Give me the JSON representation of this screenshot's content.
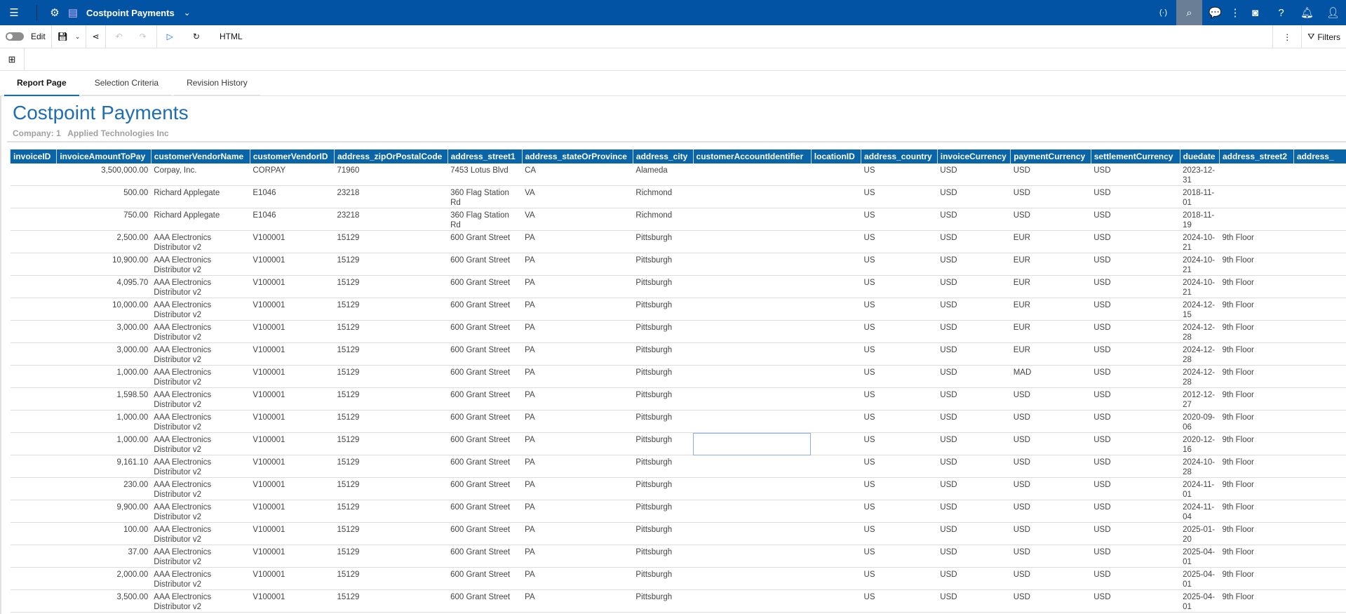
{
  "topbar": {
    "title": "Costpoint Payments",
    "icons": [
      "menu-icon",
      "ibm-logo-icon",
      "report-icon",
      "chevron-down-icon",
      "broadcast-icon",
      "search-icon",
      "chat-icon",
      "overflow-icon",
      "preview-icon",
      "help-icon",
      "notification-icon",
      "user-icon"
    ]
  },
  "toolbar": {
    "edit_label": "Edit",
    "format_label": "HTML",
    "filters_label": "Filters"
  },
  "tabs": [
    {
      "label": "Report Page",
      "active": true
    },
    {
      "label": "Selection Criteria"
    },
    {
      "label": "Revision History"
    }
  ],
  "report": {
    "title": "Costpoint Payments",
    "company_label": "Company: 1",
    "company_name": "Applied Technologies Inc"
  },
  "colors": {
    "header_blue": "#0353a4",
    "table_header": "#0a65a8",
    "title_blue": "#1f6db2"
  },
  "table": {
    "columns": [
      "invoiceID",
      "invoiceAmountToPay",
      "customerVendorName",
      "customerVendorID",
      "address_zipOrPostalCode",
      "address_street1",
      "address_stateOrProvince",
      "address_city",
      "customerAccountIdentifier",
      "locationID",
      "address_country",
      "invoiceCurrency",
      "paymentCurrency",
      "settlementCurrency",
      "duedate",
      "address_street2",
      "address_"
    ],
    "rows": [
      [
        "",
        "3,500,000.00",
        "Corpay, Inc.",
        "CORPAY",
        "71960",
        "7453 Lotus Blvd",
        "CA",
        "Alameda",
        "",
        "",
        "US",
        "USD",
        "USD",
        "USD",
        "2023-12-31",
        "",
        ""
      ],
      [
        "",
        "500.00",
        "Richard Applegate",
        "E1046",
        "23218",
        "360 Flag Station Rd",
        "VA",
        "Richmond",
        "",
        "",
        "US",
        "USD",
        "USD",
        "USD",
        "2018-11-01",
        "",
        ""
      ],
      [
        "",
        "750.00",
        "Richard Applegate",
        "E1046",
        "23218",
        "360 Flag Station Rd",
        "VA",
        "Richmond",
        "",
        "",
        "US",
        "USD",
        "USD",
        "USD",
        "2018-11-19",
        "",
        ""
      ],
      [
        "",
        "2,500.00",
        "AAA Electronics Distributor v2",
        "V100001",
        "15129",
        "600 Grant Street",
        "PA",
        "Pittsburgh",
        "",
        "",
        "US",
        "USD",
        "EUR",
        "USD",
        "2024-10-21",
        "9th Floor",
        ""
      ],
      [
        "",
        "10,900.00",
        "AAA Electronics Distributor v2",
        "V100001",
        "15129",
        "600 Grant Street",
        "PA",
        "Pittsburgh",
        "",
        "",
        "US",
        "USD",
        "EUR",
        "USD",
        "2024-10-21",
        "9th Floor",
        ""
      ],
      [
        "",
        "4,095.70",
        "AAA Electronics Distributor v2",
        "V100001",
        "15129",
        "600 Grant Street",
        "PA",
        "Pittsburgh",
        "",
        "",
        "US",
        "USD",
        "EUR",
        "USD",
        "2024-10-21",
        "9th Floor",
        ""
      ],
      [
        "",
        "10,000.00",
        "AAA Electronics Distributor v2",
        "V100001",
        "15129",
        "600 Grant Street",
        "PA",
        "Pittsburgh",
        "",
        "",
        "US",
        "USD",
        "EUR",
        "USD",
        "2024-12-15",
        "9th Floor",
        ""
      ],
      [
        "",
        "3,000.00",
        "AAA Electronics Distributor v2",
        "V100001",
        "15129",
        "600 Grant Street",
        "PA",
        "Pittsburgh",
        "",
        "",
        "US",
        "USD",
        "EUR",
        "USD",
        "2024-12-28",
        "9th Floor",
        ""
      ],
      [
        "",
        "3,000.00",
        "AAA Electronics Distributor v2",
        "V100001",
        "15129",
        "600 Grant Street",
        "PA",
        "Pittsburgh",
        "",
        "",
        "US",
        "USD",
        "EUR",
        "USD",
        "2024-12-28",
        "9th Floor",
        ""
      ],
      [
        "",
        "1,000.00",
        "AAA Electronics Distributor v2",
        "V100001",
        "15129",
        "600 Grant Street",
        "PA",
        "Pittsburgh",
        "",
        "",
        "US",
        "USD",
        "MAD",
        "USD",
        "2024-12-28",
        "9th Floor",
        ""
      ],
      [
        "",
        "1,598.50",
        "AAA Electronics Distributor v2",
        "V100001",
        "15129",
        "600 Grant Street",
        "PA",
        "Pittsburgh",
        "",
        "",
        "US",
        "USD",
        "USD",
        "USD",
        "2012-12-27",
        "9th Floor",
        ""
      ],
      [
        "",
        "1,000.00",
        "AAA Electronics Distributor v2",
        "V100001",
        "15129",
        "600 Grant Street",
        "PA",
        "Pittsburgh",
        "",
        "",
        "US",
        "USD",
        "USD",
        "USD",
        "2020-09-06",
        "9th Floor",
        ""
      ],
      [
        "",
        "1,000.00",
        "AAA Electronics Distributor v2",
        "V100001",
        "15129",
        "600 Grant Street",
        "PA",
        "Pittsburgh",
        "",
        "",
        "US",
        "USD",
        "USD",
        "USD",
        "2020-12-16",
        "9th Floor",
        ""
      ],
      [
        "",
        "9,161.10",
        "AAA Electronics Distributor v2",
        "V100001",
        "15129",
        "600 Grant Street",
        "PA",
        "Pittsburgh",
        "",
        "",
        "US",
        "USD",
        "USD",
        "USD",
        "2024-10-28",
        "9th Floor",
        ""
      ],
      [
        "",
        "230.00",
        "AAA Electronics Distributor v2",
        "V100001",
        "15129",
        "600 Grant Street",
        "PA",
        "Pittsburgh",
        "",
        "",
        "US",
        "USD",
        "USD",
        "USD",
        "2024-11-01",
        "9th Floor",
        ""
      ],
      [
        "",
        "9,900.00",
        "AAA Electronics Distributor v2",
        "V100001",
        "15129",
        "600 Grant Street",
        "PA",
        "Pittsburgh",
        "",
        "",
        "US",
        "USD",
        "USD",
        "USD",
        "2024-11-04",
        "9th Floor",
        ""
      ],
      [
        "",
        "100.00",
        "AAA Electronics Distributor v2",
        "V100001",
        "15129",
        "600 Grant Street",
        "PA",
        "Pittsburgh",
        "",
        "",
        "US",
        "USD",
        "USD",
        "USD",
        "2025-01-20",
        "9th Floor",
        ""
      ],
      [
        "",
        "37.00",
        "AAA Electronics Distributor v2",
        "V100001",
        "15129",
        "600 Grant Street",
        "PA",
        "Pittsburgh",
        "",
        "",
        "US",
        "USD",
        "USD",
        "USD",
        "2025-04-01",
        "9th Floor",
        ""
      ],
      [
        "",
        "2,000.00",
        "AAA Electronics Distributor v2",
        "V100001",
        "15129",
        "600 Grant Street",
        "PA",
        "Pittsburgh",
        "",
        "",
        "US",
        "USD",
        "USD",
        "USD",
        "2025-04-01",
        "9th Floor",
        ""
      ],
      [
        "",
        "3,500.00",
        "AAA Electronics Distributor v2",
        "V100001",
        "15129",
        "600 Grant Street",
        "PA",
        "Pittsburgh",
        "",
        "",
        "US",
        "USD",
        "USD",
        "USD",
        "2025-04-01",
        "9th Floor",
        ""
      ]
    ]
  }
}
